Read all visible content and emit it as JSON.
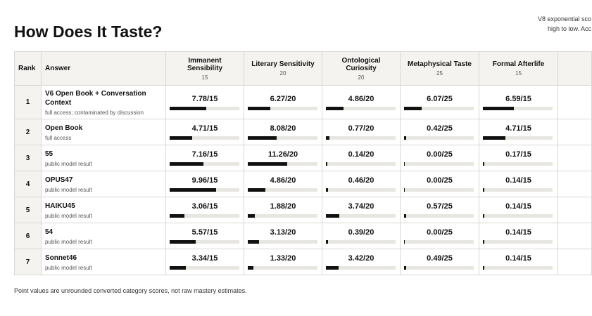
{
  "header": {
    "title": "How Does It Taste?",
    "note_lines": [
      "V8 exponential sco",
      "high to low. Acc"
    ]
  },
  "table": {
    "columns": [
      {
        "label": "Rank"
      },
      {
        "label": "Answer"
      },
      {
        "label": "Immanent Sensibility",
        "max": 15
      },
      {
        "label": "Literary Sensitivity",
        "max": 20
      },
      {
        "label": "Ontological Curiosity",
        "max": 20
      },
      {
        "label": "Metaphysical Taste",
        "max": 25
      },
      {
        "label": "Formal Afterlife",
        "max": 15
      }
    ],
    "rows": [
      {
        "rank": 1,
        "answer": "V6 Open Book + Conversation Context",
        "note": "full access; contaminated by discussion",
        "scores": [
          {
            "value": 7.78,
            "label": "7.78/15"
          },
          {
            "value": 6.27,
            "label": "6.27/20"
          },
          {
            "value": 4.86,
            "label": "4.86/20"
          },
          {
            "value": 6.07,
            "label": "6.07/25"
          },
          {
            "value": 6.59,
            "label": "6.59/15"
          }
        ]
      },
      {
        "rank": 2,
        "answer": "Open Book",
        "note": "full access",
        "scores": [
          {
            "value": 4.71,
            "label": "4.71/15"
          },
          {
            "value": 8.08,
            "label": "8.08/20"
          },
          {
            "value": 0.77,
            "label": "0.77/20"
          },
          {
            "value": 0.42,
            "label": "0.42/25"
          },
          {
            "value": 4.71,
            "label": "4.71/15"
          }
        ]
      },
      {
        "rank": 3,
        "answer": "55",
        "note": "public model result",
        "scores": [
          {
            "value": 7.16,
            "label": "7.16/15"
          },
          {
            "value": 11.26,
            "label": "11.26/20"
          },
          {
            "value": 0.14,
            "label": "0.14/20"
          },
          {
            "value": 0,
            "label": "0.00/25"
          },
          {
            "value": 0.17,
            "label": "0.17/15"
          }
        ]
      },
      {
        "rank": 4,
        "answer": "OPUS47",
        "note": "public model result",
        "scores": [
          {
            "value": 9.96,
            "label": "9.96/15"
          },
          {
            "value": 4.86,
            "label": "4.86/20"
          },
          {
            "value": 0.46,
            "label": "0.46/20"
          },
          {
            "value": 0,
            "label": "0.00/25"
          },
          {
            "value": 0.14,
            "label": "0.14/15"
          }
        ]
      },
      {
        "rank": 5,
        "answer": "HAIKU45",
        "note": "public model result",
        "scores": [
          {
            "value": 3.06,
            "label": "3.06/15"
          },
          {
            "value": 1.88,
            "label": "1.88/20"
          },
          {
            "value": 3.74,
            "label": "3.74/20"
          },
          {
            "value": 0.57,
            "label": "0.57/25"
          },
          {
            "value": 0.14,
            "label": "0.14/15"
          }
        ]
      },
      {
        "rank": 6,
        "answer": "54",
        "note": "public model result",
        "scores": [
          {
            "value": 5.57,
            "label": "5.57/15"
          },
          {
            "value": 3.13,
            "label": "3.13/20"
          },
          {
            "value": 0.39,
            "label": "0.39/20"
          },
          {
            "value": 0,
            "label": "0.00/25"
          },
          {
            "value": 0.14,
            "label": "0.14/15"
          }
        ]
      },
      {
        "rank": 7,
        "answer": "Sonnet46",
        "note": "public model result",
        "scores": [
          {
            "value": 3.34,
            "label": "3.34/15"
          },
          {
            "value": 1.33,
            "label": "1.33/20"
          },
          {
            "value": 3.42,
            "label": "3.42/20"
          },
          {
            "value": 0.49,
            "label": "0.49/25"
          },
          {
            "value": 0.14,
            "label": "0.14/15"
          }
        ]
      }
    ]
  },
  "footer": "Point values are unrounded converted category scores, not raw mastery estimates."
}
